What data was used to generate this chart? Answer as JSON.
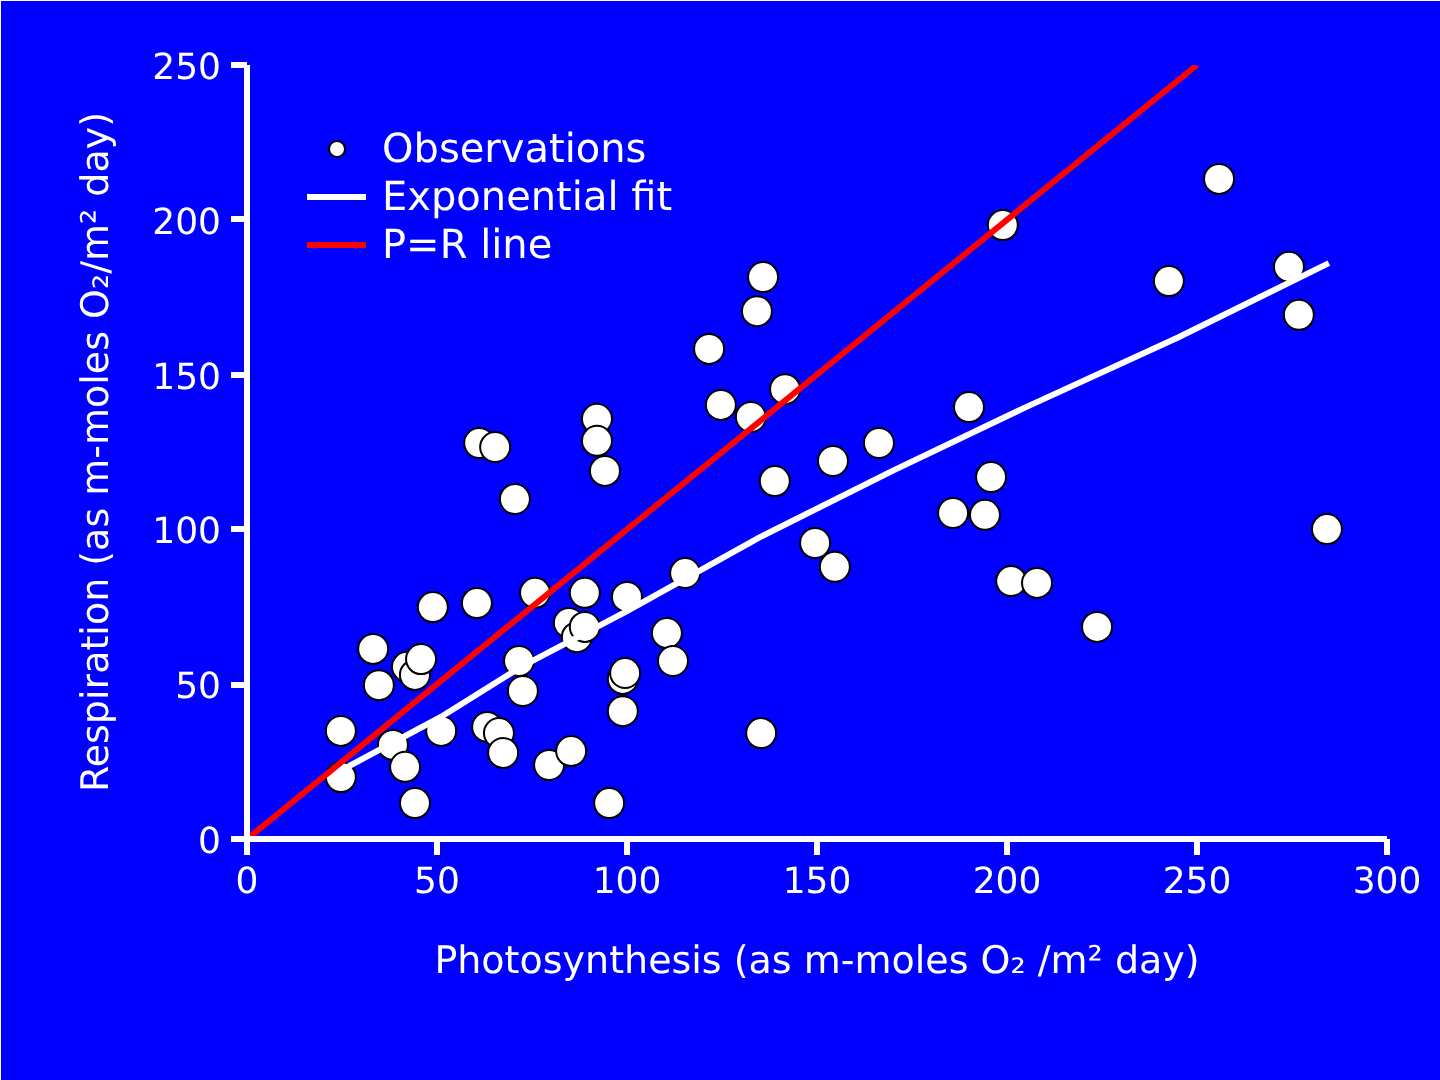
{
  "chart_data": {
    "type": "scatter",
    "xlabel": "Photosynthesis (as m-moles O₂ /m² day)",
    "ylabel": "Respiration (as m-moles O₂/m² day)",
    "xlim": [
      0,
      300
    ],
    "ylim": [
      0,
      250
    ],
    "xticks": [
      0,
      50,
      100,
      150,
      200,
      250,
      300
    ],
    "yticks": [
      0,
      50,
      100,
      150,
      200,
      250
    ],
    "grid": false,
    "legend": "top left",
    "series": [
      {
        "name": "Observations",
        "color": "#ffffff",
        "marker": "circle",
        "x": [
          24.7,
          24.7,
          33.2,
          34.7,
          38.4,
          41.6,
          44.2,
          42.1,
          44.2,
          45.8,
          48.9,
          51.1,
          60.5,
          63.2,
          66.3,
          67.4,
          70.5,
          71.6,
          72.6,
          75.8,
          79.5,
          85.3,
          84.7,
          86.8,
          88.9,
          88.9,
          94.2,
          92.1,
          92.1,
          95.3,
          98.9,
          99.5,
          98.9,
          100,
          110.5,
          112.1,
          115.3,
          135.8,
          134.2,
          121.6,
          141.6,
          124.7,
          132.6,
          61.1,
          65.3,
          154.2,
          138.9,
          149.5,
          154.7,
          198.9,
          255.8,
          274.2,
          242.6,
          276.8,
          190,
          166.3,
          195.8,
          185.8,
          194.2,
          284.2,
          201.1,
          207.9,
          223.7,
          135.3
        ],
        "values": [
          34.9,
          20,
          61.4,
          49.7,
          30.4,
          23.3,
          11.6,
          55.6,
          53,
          58.1,
          74.9,
          34.9,
          76.2,
          36.2,
          34.2,
          27.8,
          109.8,
          57.5,
          47.8,
          79.5,
          23.9,
          28.4,
          69.8,
          65.2,
          68.5,
          79.5,
          118.9,
          135.7,
          128.6,
          11.6,
          51.7,
          53.6,
          41.3,
          78.2,
          66.5,
          57.5,
          85.9,
          181.5,
          170.5,
          158.3,
          145.3,
          140.2,
          136.3,
          127.9,
          126.6,
          122.1,
          115.6,
          95.6,
          87.9,
          198.3,
          213.2,
          184.8,
          180.2,
          169.3,
          139.5,
          127.9,
          116.9,
          105.3,
          104.7,
          100.1,
          83.3,
          82.7,
          68.5,
          34.2
        ]
      },
      {
        "name": "Exponential fit",
        "color": "#ffffff",
        "type": "line",
        "x": [
          26,
          51,
          72,
          100,
          135,
          170,
          205,
          245,
          284.7
        ],
        "values": [
          23,
          39.4,
          55.5,
          73.6,
          97.5,
          119,
          139.5,
          162,
          186
        ]
      },
      {
        "name": "P=R line",
        "color": "#ff0000",
        "type": "line",
        "x": [
          0,
          250
        ],
        "values": [
          0,
          250
        ]
      }
    ]
  }
}
